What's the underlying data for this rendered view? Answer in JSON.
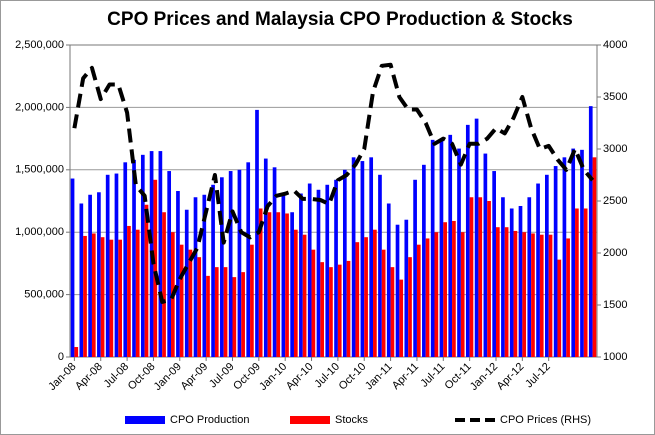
{
  "chart_data": {
    "type": "bar_line",
    "title": "CPO Prices and Malaysia CPO Production & Stocks",
    "categories": [
      "Jan-08",
      null,
      null,
      "Apr-08",
      null,
      null,
      "Jul-08",
      null,
      null,
      "Oct-08",
      null,
      null,
      "Jan-09",
      null,
      null,
      "Apr-09",
      null,
      null,
      "Jul-09",
      null,
      null,
      "Oct-09",
      null,
      null,
      "Jan-10",
      null,
      null,
      "Apr-10",
      null,
      null,
      "Jul-10",
      null,
      null,
      "Oct-10",
      null,
      null,
      "Jan-11",
      null,
      null,
      "Apr-11",
      null,
      null,
      "Jul-11",
      null,
      null,
      "Oct-11",
      null,
      null,
      "Jan-12",
      null,
      null,
      "Apr-12",
      null,
      null,
      "Jul-12",
      null,
      null,
      null,
      null,
      null
    ],
    "series": [
      {
        "name": "CPO Production",
        "color": "#0000ff",
        "values": [
          1430000,
          1230000,
          1300000,
          1320000,
          1460000,
          1470000,
          1560000,
          1580000,
          1620000,
          1650000,
          1650000,
          1490000,
          1330000,
          1180000,
          1280000,
          1300000,
          1380000,
          1440000,
          1490000,
          1500000,
          1560000,
          1980000,
          1590000,
          1520000,
          1310000,
          1160000,
          1310000,
          1390000,
          1340000,
          1380000,
          1420000,
          1500000,
          1600000,
          1570000,
          1600000,
          1460000,
          1230000,
          1060000,
          1100000,
          1420000,
          1540000,
          1740000,
          1750000,
          1780000,
          1670000,
          1860000,
          1910000,
          1630000,
          1490000,
          1280000,
          1190000,
          1210000,
          1280000,
          1390000,
          1460000,
          1530000,
          1600000,
          1670000,
          1660000,
          2010000
        ]
      },
      {
        "name": "Stocks",
        "color": "#ff0000",
        "values": [
          80000,
          970000,
          990000,
          960000,
          940000,
          940000,
          1050000,
          1020000,
          1220000,
          1420000,
          1160000,
          1000000,
          900000,
          860000,
          800000,
          650000,
          720000,
          720000,
          640000,
          680000,
          900000,
          1190000,
          1160000,
          1160000,
          1150000,
          1020000,
          980000,
          860000,
          760000,
          720000,
          740000,
          770000,
          920000,
          960000,
          1020000,
          860000,
          720000,
          620000,
          800000,
          900000,
          950000,
          1000000,
          1080000,
          1090000,
          1000000,
          1280000,
          1280000,
          1250000,
          1040000,
          1040000,
          1010000,
          1000000,
          990000,
          980000,
          980000,
          780000,
          950000,
          1190000,
          1190000,
          1600000
        ]
      },
      {
        "name": "CPO Prices (RHS)",
        "color": "#000000",
        "axis": "y2",
        "values": [
          3200,
          3680,
          3780,
          3480,
          3620,
          3620,
          3350,
          2650,
          2550,
          1900,
          1530,
          1550,
          1750,
          1900,
          2050,
          2400,
          2750,
          2100,
          2400,
          2200,
          2150,
          2200,
          2450,
          2550,
          2570,
          2600,
          2520,
          2520,
          2510,
          2470,
          2700,
          2750,
          2850,
          3000,
          3550,
          3800,
          3810,
          3500,
          3380,
          3380,
          3250,
          3050,
          3100,
          3050,
          2850,
          3050,
          3050,
          3100,
          3200,
          3150,
          3300,
          3500,
          3200,
          3000,
          3030,
          2900,
          2800,
          3000,
          2800,
          2700
        ]
      }
    ],
    "ylim": [
      0,
      2500000
    ],
    "yticks": [
      0,
      {
        "value": 500000,
        "label": "500,000"
      },
      {
        "value": 1000000,
        "label": "1,000,000"
      },
      {
        "value": 1500000,
        "label": "1,500,000"
      },
      {
        "value": 2000000,
        "label": "2,000,000"
      },
      {
        "value": 2500000,
        "label": "2,500,000"
      }
    ],
    "y2lim": [
      1000,
      4000
    ],
    "y2ticks": [
      1000,
      1500,
      2000,
      2500,
      3000,
      3500,
      4000
    ],
    "grid": true,
    "legend": "bottom"
  }
}
